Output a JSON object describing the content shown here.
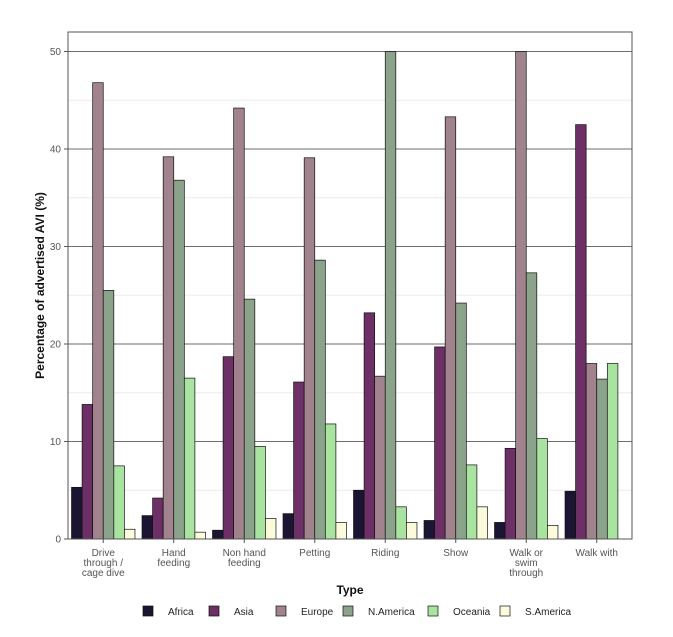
{
  "chart_data": {
    "type": "bar",
    "title": "",
    "xlabel": "Type",
    "ylabel": "Percentage of advertised AVI (%)",
    "ylim": [
      0,
      52
    ],
    "yticks": [
      0,
      10,
      20,
      30,
      40,
      50
    ],
    "categories": [
      "Drive through / cage dive",
      "Hand feeding",
      "Non hand feeding",
      "Petting",
      "Riding",
      "Show",
      "Walk or swim through",
      "Walk with"
    ],
    "category_lines": [
      [
        "Drive",
        "through /",
        "cage dive"
      ],
      [
        "Hand",
        "feeding"
      ],
      [
        "Non hand",
        "feeding"
      ],
      [
        "Petting"
      ],
      [
        "Riding"
      ],
      [
        "Show"
      ],
      [
        "Walk or",
        "swim",
        "through"
      ],
      [
        "Walk with"
      ]
    ],
    "series": [
      {
        "name": "Africa",
        "color": "#1c1433",
        "values": [
          5.3,
          2.4,
          0.9,
          2.6,
          5.0,
          1.9,
          1.7,
          4.9
        ]
      },
      {
        "name": "Asia",
        "color": "#6c2f66",
        "values": [
          13.8,
          4.2,
          18.7,
          16.1,
          23.2,
          19.7,
          9.3,
          42.5
        ]
      },
      {
        "name": "Europe",
        "color": "#a1838e",
        "values": [
          46.8,
          39.2,
          44.2,
          39.1,
          16.7,
          43.3,
          50.0,
          18.0
        ]
      },
      {
        "name": "N.America",
        "color": "#8aa38a",
        "values": [
          25.5,
          36.8,
          24.6,
          28.6,
          50.0,
          24.2,
          27.3,
          16.4
        ]
      },
      {
        "name": "Oceania",
        "color": "#a8e3a0",
        "values": [
          7.5,
          16.5,
          9.5,
          11.8,
          3.3,
          7.6,
          10.3,
          18.0
        ]
      },
      {
        "name": "S.America",
        "color": "#fbfbdc",
        "values": [
          1.0,
          0.7,
          2.1,
          1.7,
          1.7,
          3.3,
          1.4,
          0.0
        ]
      }
    ],
    "grid": true,
    "legend_position": "bottom"
  }
}
